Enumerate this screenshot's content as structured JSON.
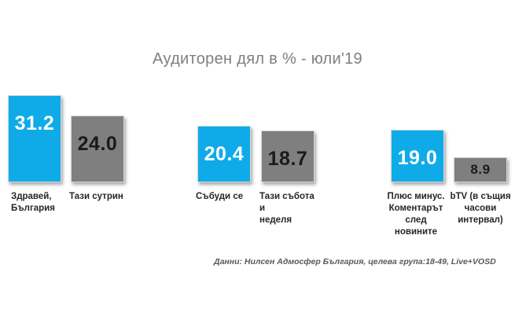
{
  "chart_data": {
    "type": "bar",
    "title": "Аудиторен дял в % - юли'19",
    "xlabel": "",
    "ylabel": "",
    "ylim": [
      0,
      33
    ],
    "grid": false,
    "legend": "none",
    "categories": [
      "Здравей, България",
      "Тази сутрин",
      "Събуди се",
      "Тази събота и неделя",
      "Плюс минус. Коментарът след новините",
      "bTV (в същия часови интервал)"
    ],
    "values": [
      31.2,
      24.0,
      20.4,
      18.7,
      19.0,
      8.9
    ],
    "value_labels": [
      "31.2",
      "24.0",
      "20.4",
      "18.7",
      "19.0",
      "8.9"
    ],
    "label_lines": [
      [
        "Здравей,",
        "България"
      ],
      [
        "Тази сутрин"
      ],
      [
        "Събуди се"
      ],
      [
        "Тази събота и",
        "неделя"
      ],
      [
        "Плюс минус.",
        "Коментарът",
        "след",
        "новините"
      ],
      [
        "bTV (в същия",
        "часови",
        "интервал)"
      ]
    ],
    "bar_colors": [
      "#0fabe8",
      "#7f7f7f",
      "#0fabe8",
      "#7f7f7f",
      "#0fabe8",
      "#7f7f7f"
    ],
    "note": "Данни: Нилсен Адмосфер България, целева група:18-49, Live+VOSD"
  }
}
